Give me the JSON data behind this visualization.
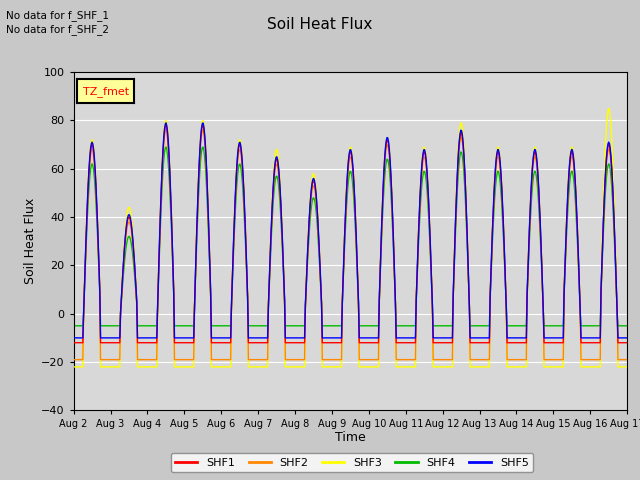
{
  "title": "Soil Heat Flux",
  "ylabel": "Soil Heat Flux",
  "xlabel": "Time",
  "ylim": [
    -40,
    100
  ],
  "yticks": [
    -40,
    -20,
    0,
    20,
    40,
    60,
    80,
    100
  ],
  "annotation_lines": [
    "No data for f_SHF_1",
    "No data for f_SHF_2"
  ],
  "tz_label": "TZ_fmet",
  "series_colors": {
    "SHF1": "#ff0000",
    "SHF2": "#ff8800",
    "SHF3": "#ffff00",
    "SHF4": "#00bb00",
    "SHF5": "#0000ff"
  },
  "legend_entries": [
    "SHF1",
    "SHF2",
    "SHF3",
    "SHF4",
    "SHF5"
  ],
  "n_days": 15,
  "fig_bg_color": "#c8c8c8",
  "plot_bg_color": "#d8d8d8"
}
